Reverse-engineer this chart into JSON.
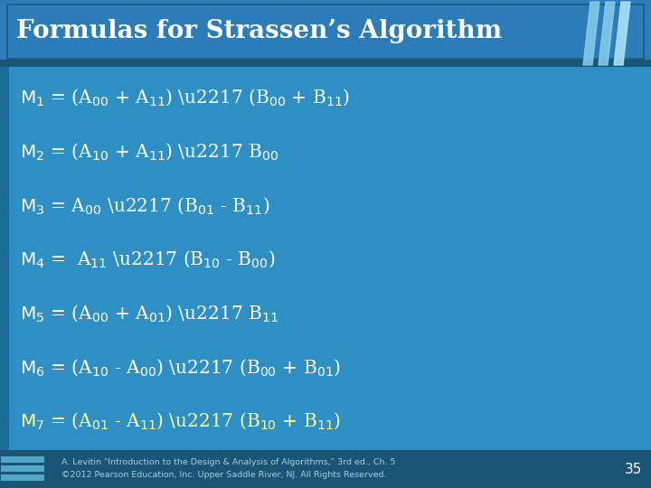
{
  "title": "Formulas for Strassen’s Algorithm",
  "title_color": "#FFFFFF",
  "title_bg_top": "#2B7CB8",
  "title_bg_bottom": "#2B7CB8",
  "body_bg_color": "#2E8FC5",
  "separator_color": "#1A5575",
  "left_bar_color": "#1A6A9A",
  "footer_bg_color": "#1A5575",
  "formula_color": "#FFFFFF",
  "highlight_color": "#FFFF99",
  "footer_text_line1": "A. Levitin \"Introduction to the Design & Analysis of Algorithms,\" 3rd ed., Ch. 5",
  "footer_text_line2": "©2012 Pearson Education, Inc. Upper Saddle River, NJ. All Rights Reserved.",
  "page_number": "35",
  "figsize": [
    7.2,
    5.4
  ],
  "dpi": 100
}
